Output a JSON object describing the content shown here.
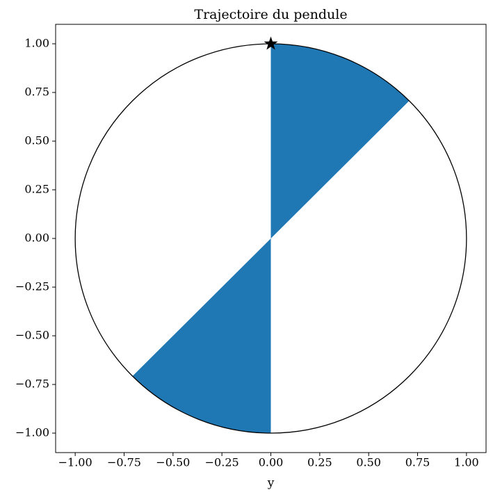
{
  "chart_data": {
    "type": "pendulum",
    "title": "Trajectoire du pendule",
    "xlabel": "y",
    "xlim": [
      -1.1,
      1.1
    ],
    "ylim": [
      -1.1,
      1.1
    ],
    "xticks": [
      {
        "value": -1,
        "label": "−1.00"
      },
      {
        "value": -0.75,
        "label": "−0.75"
      },
      {
        "value": -0.5,
        "label": "−0.50"
      },
      {
        "value": -0.25,
        "label": "−0.25"
      },
      {
        "value": 0,
        "label": "0.00"
      },
      {
        "value": 0.25,
        "label": "0.25"
      },
      {
        "value": 0.5,
        "label": "0.50"
      },
      {
        "value": 0.75,
        "label": "0.75"
      },
      {
        "value": 1,
        "label": "1.00"
      }
    ],
    "yticks": [
      {
        "value": -1,
        "label": "−1.00"
      },
      {
        "value": -0.75,
        "label": "−0.75"
      },
      {
        "value": -0.5,
        "label": "−0.50"
      },
      {
        "value": -0.25,
        "label": "−0.25"
      },
      {
        "value": 0,
        "label": "0.00"
      },
      {
        "value": 0.25,
        "label": "0.25"
      },
      {
        "value": 0.5,
        "label": "0.50"
      },
      {
        "value": 0.75,
        "label": "0.75"
      },
      {
        "value": 1,
        "label": "1.00"
      }
    ],
    "grid": false,
    "circle": {
      "cx": 0,
      "cy": 0,
      "radius": 1,
      "color": "#000000"
    },
    "wedges": [
      {
        "cx": 0,
        "cy": 0,
        "radius": 1,
        "theta1": 45,
        "theta2": 90,
        "color": "#1f77b4"
      },
      {
        "cx": 0,
        "cy": 0,
        "radius": 1,
        "theta1": 225,
        "theta2": 270,
        "color": "#1f77b4"
      }
    ],
    "marker": {
      "x": 0,
      "y": 1,
      "shape": "star",
      "color": "#000000"
    }
  }
}
